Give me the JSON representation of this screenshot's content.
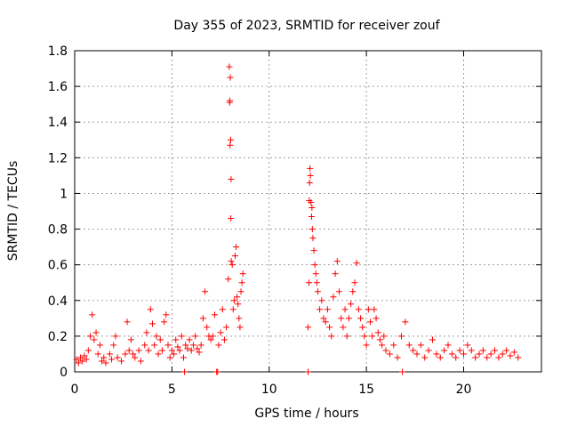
{
  "chart_data": {
    "type": "scatter",
    "title": "Day 355 of 2023, SRMTID for receiver zouf",
    "xlabel": "GPS time / hours",
    "ylabel": "SRMTID / TECUs",
    "xlim": [
      0,
      24
    ],
    "ylim": [
      0,
      1.8
    ],
    "grid": true,
    "marker": "+",
    "x_ticks": [
      0,
      5,
      10,
      15,
      20
    ],
    "x_tick_labels": [
      "0",
      "5",
      "10",
      "15",
      "20"
    ],
    "y_ticks": [
      0,
      0.2,
      0.4,
      0.6,
      0.8,
      1,
      1.2,
      1.4,
      1.6,
      1.8
    ],
    "y_tick_labels": [
      "0",
      "0.2",
      "0.4",
      "0.6",
      "0.8",
      "1",
      "1.2",
      "1.4",
      "1.6",
      "1.8"
    ],
    "color": "#ff0000",
    "series": [
      {
        "name": "SRMTID",
        "points": [
          [
            0.1,
            0.07
          ],
          [
            0.2,
            0.05
          ],
          [
            0.3,
            0.08
          ],
          [
            0.4,
            0.06
          ],
          [
            0.5,
            0.09
          ],
          [
            0.6,
            0.07
          ],
          [
            0.7,
            0.12
          ],
          [
            0.8,
            0.2
          ],
          [
            0.9,
            0.32
          ],
          [
            1.0,
            0.18
          ],
          [
            1.1,
            0.22
          ],
          [
            1.2,
            0.1
          ],
          [
            1.3,
            0.15
          ],
          [
            1.4,
            0.06
          ],
          [
            1.5,
            0.08
          ],
          [
            1.6,
            0.05
          ],
          [
            1.8,
            0.1
          ],
          [
            1.9,
            0.07
          ],
          [
            2.0,
            0.15
          ],
          [
            2.1,
            0.2
          ],
          [
            2.2,
            0.08
          ],
          [
            2.4,
            0.06
          ],
          [
            2.6,
            0.1
          ],
          [
            2.7,
            0.28
          ],
          [
            2.8,
            0.12
          ],
          [
            2.9,
            0.18
          ],
          [
            3.0,
            0.1
          ],
          [
            3.1,
            0.08
          ],
          [
            3.3,
            0.12
          ],
          [
            3.4,
            0.06
          ],
          [
            3.6,
            0.15
          ],
          [
            3.7,
            0.22
          ],
          [
            3.8,
            0.12
          ],
          [
            3.9,
            0.35
          ],
          [
            4.0,
            0.27
          ],
          [
            4.1,
            0.15
          ],
          [
            4.2,
            0.2
          ],
          [
            4.3,
            0.1
          ],
          [
            4.4,
            0.18
          ],
          [
            4.5,
            0.12
          ],
          [
            4.6,
            0.28
          ],
          [
            4.7,
            0.32
          ],
          [
            4.8,
            0.15
          ],
          [
            4.9,
            0.08
          ],
          [
            5.0,
            0.12
          ],
          [
            5.1,
            0.1
          ],
          [
            5.2,
            0.18
          ],
          [
            5.3,
            0.14
          ],
          [
            5.4,
            0.12
          ],
          [
            5.5,
            0.2
          ],
          [
            5.6,
            0.08
          ],
          [
            5.65,
            0.0
          ],
          [
            5.7,
            0.15
          ],
          [
            5.8,
            0.13
          ],
          [
            5.9,
            0.18
          ],
          [
            6.0,
            0.12
          ],
          [
            6.1,
            0.15
          ],
          [
            6.2,
            0.2
          ],
          [
            6.3,
            0.13
          ],
          [
            6.4,
            0.11
          ],
          [
            6.5,
            0.15
          ],
          [
            6.6,
            0.3
          ],
          [
            6.7,
            0.45
          ],
          [
            6.8,
            0.25
          ],
          [
            6.9,
            0.2
          ],
          [
            7.0,
            0.18
          ],
          [
            7.1,
            0.2
          ],
          [
            7.2,
            0.32
          ],
          [
            7.3,
            0.0
          ],
          [
            7.35,
            0.0
          ],
          [
            7.4,
            0.15
          ],
          [
            7.5,
            0.22
          ],
          [
            7.6,
            0.35
          ],
          [
            7.7,
            0.18
          ],
          [
            7.8,
            0.25
          ],
          [
            7.9,
            0.52
          ],
          [
            7.95,
            1.71
          ],
          [
            8.0,
            1.65
          ],
          [
            7.98,
            1.52
          ],
          [
            7.97,
            1.51
          ],
          [
            8.02,
            1.3
          ],
          [
            7.99,
            1.27
          ],
          [
            8.04,
            1.08
          ],
          [
            8.03,
            0.86
          ],
          [
            8.05,
            0.62
          ],
          [
            8.1,
            0.6
          ],
          [
            8.15,
            0.35
          ],
          [
            8.2,
            0.4
          ],
          [
            8.25,
            0.65
          ],
          [
            8.3,
            0.7
          ],
          [
            8.35,
            0.42
          ],
          [
            8.4,
            0.38
          ],
          [
            8.45,
            0.3
          ],
          [
            8.5,
            0.25
          ],
          [
            8.55,
            0.45
          ],
          [
            8.6,
            0.5
          ],
          [
            8.65,
            0.55
          ],
          [
            12.0,
            0.25
          ],
          [
            12.0,
            0.0
          ],
          [
            12.05,
            0.5
          ],
          [
            12.1,
            1.14
          ],
          [
            12.12,
            1.1
          ],
          [
            12.08,
            1.06
          ],
          [
            12.06,
            0.96
          ],
          [
            12.15,
            0.95
          ],
          [
            12.2,
            0.92
          ],
          [
            12.18,
            0.87
          ],
          [
            12.22,
            0.8
          ],
          [
            12.25,
            0.75
          ],
          [
            12.3,
            0.68
          ],
          [
            12.35,
            0.6
          ],
          [
            12.4,
            0.55
          ],
          [
            12.45,
            0.5
          ],
          [
            12.5,
            0.45
          ],
          [
            12.6,
            0.35
          ],
          [
            12.7,
            0.4
          ],
          [
            12.8,
            0.3
          ],
          [
            12.9,
            0.28
          ],
          [
            13.0,
            0.35
          ],
          [
            13.1,
            0.25
          ],
          [
            13.2,
            0.2
          ],
          [
            13.3,
            0.42
          ],
          [
            13.4,
            0.55
          ],
          [
            13.5,
            0.62
          ],
          [
            13.6,
            0.45
          ],
          [
            13.7,
            0.3
          ],
          [
            13.8,
            0.25
          ],
          [
            13.9,
            0.35
          ],
          [
            14.0,
            0.2
          ],
          [
            14.1,
            0.3
          ],
          [
            14.2,
            0.38
          ],
          [
            14.3,
            0.45
          ],
          [
            14.4,
            0.5
          ],
          [
            14.5,
            0.61
          ],
          [
            14.6,
            0.35
          ],
          [
            14.7,
            0.3
          ],
          [
            14.8,
            0.25
          ],
          [
            14.9,
            0.2
          ],
          [
            15.0,
            0.15
          ],
          [
            15.1,
            0.35
          ],
          [
            15.2,
            0.28
          ],
          [
            15.3,
            0.2
          ],
          [
            15.4,
            0.35
          ],
          [
            15.5,
            0.3
          ],
          [
            15.6,
            0.22
          ],
          [
            15.7,
            0.18
          ],
          [
            15.8,
            0.15
          ],
          [
            15.9,
            0.2
          ],
          [
            16.0,
            0.12
          ],
          [
            16.2,
            0.1
          ],
          [
            16.4,
            0.15
          ],
          [
            16.6,
            0.08
          ],
          [
            16.8,
            0.2
          ],
          [
            16.85,
            0.0
          ],
          [
            17.0,
            0.28
          ],
          [
            17.2,
            0.15
          ],
          [
            17.4,
            0.12
          ],
          [
            17.6,
            0.1
          ],
          [
            17.8,
            0.15
          ],
          [
            18.0,
            0.08
          ],
          [
            18.2,
            0.12
          ],
          [
            18.4,
            0.18
          ],
          [
            18.6,
            0.1
          ],
          [
            18.8,
            0.08
          ],
          [
            19.0,
            0.12
          ],
          [
            19.2,
            0.15
          ],
          [
            19.4,
            0.1
          ],
          [
            19.6,
            0.08
          ],
          [
            19.8,
            0.12
          ],
          [
            20.0,
            0.1
          ],
          [
            20.2,
            0.15
          ],
          [
            20.4,
            0.12
          ],
          [
            20.6,
            0.08
          ],
          [
            20.8,
            0.1
          ],
          [
            21.0,
            0.12
          ],
          [
            21.2,
            0.08
          ],
          [
            21.4,
            0.1
          ],
          [
            21.6,
            0.12
          ],
          [
            21.8,
            0.08
          ],
          [
            22.0,
            0.1
          ],
          [
            22.2,
            0.12
          ],
          [
            22.4,
            0.09
          ],
          [
            22.6,
            0.11
          ],
          [
            22.8,
            0.08
          ]
        ]
      }
    ]
  }
}
